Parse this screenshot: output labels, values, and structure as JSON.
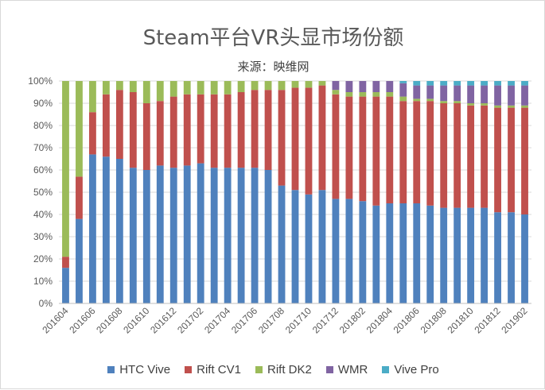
{
  "chart_data": {
    "type": "bar",
    "stacked": "percent",
    "title": "Steam平台VR头显市场份额",
    "subtitle": "来源：映维网",
    "xlabel": "",
    "ylabel": "",
    "ylim": [
      0,
      1
    ],
    "y_ticks": [
      "0%",
      "10%",
      "20%",
      "30%",
      "40%",
      "50%",
      "60%",
      "70%",
      "80%",
      "90%",
      "100%"
    ],
    "legend_position": "bottom",
    "grid": "horizontal",
    "categories": [
      "201604",
      "201605",
      "201606",
      "201607",
      "201608",
      "201609",
      "201610",
      "201611",
      "201612",
      "201701",
      "201702",
      "201703",
      "201704",
      "201705",
      "201706",
      "201707",
      "201708",
      "201709",
      "201710",
      "201711",
      "201712",
      "201801",
      "201802",
      "201803",
      "201804",
      "201805",
      "201806",
      "201807",
      "201808",
      "201809",
      "201810",
      "201811",
      "201812",
      "201901",
      "201902"
    ],
    "x_tick_labels": [
      "201604",
      "201606",
      "201608",
      "201610",
      "201612",
      "201702",
      "201704",
      "201706",
      "201708",
      "201710",
      "201712",
      "201802",
      "201804",
      "201806",
      "201808",
      "201810",
      "201812",
      "201902"
    ],
    "series": [
      {
        "name": "HTC Vive",
        "color": "#4f81bd",
        "values": [
          0.16,
          0.38,
          0.67,
          0.66,
          0.65,
          0.61,
          0.6,
          0.62,
          0.61,
          0.62,
          0.63,
          0.61,
          0.61,
          0.61,
          0.61,
          0.6,
          0.53,
          0.51,
          0.49,
          0.51,
          0.47,
          0.47,
          0.46,
          0.44,
          0.45,
          0.45,
          0.45,
          0.44,
          0.43,
          0.43,
          0.43,
          0.43,
          0.41,
          0.41,
          0.4
        ]
      },
      {
        "name": "Rift CV1",
        "color": "#c0504d",
        "values": [
          0.05,
          0.19,
          0.19,
          0.28,
          0.31,
          0.34,
          0.3,
          0.29,
          0.32,
          0.32,
          0.31,
          0.33,
          0.33,
          0.34,
          0.35,
          0.36,
          0.43,
          0.46,
          0.48,
          0.47,
          0.47,
          0.46,
          0.47,
          0.49,
          0.48,
          0.46,
          0.46,
          0.47,
          0.47,
          0.47,
          0.46,
          0.46,
          0.47,
          0.47,
          0.48
        ]
      },
      {
        "name": "Rift DK2",
        "color": "#9bbb59",
        "values": [
          0.79,
          0.43,
          0.14,
          0.06,
          0.04,
          0.05,
          0.1,
          0.09,
          0.07,
          0.06,
          0.06,
          0.06,
          0.06,
          0.05,
          0.04,
          0.04,
          0.04,
          0.03,
          0.03,
          0.02,
          0.02,
          0.02,
          0.02,
          0.02,
          0.02,
          0.02,
          0.01,
          0.01,
          0.01,
          0.01,
          0.01,
          0.01,
          0.01,
          0.01,
          0.01
        ]
      },
      {
        "name": "WMR",
        "color": "#8064a2",
        "values": [
          0,
          0,
          0,
          0,
          0,
          0,
          0,
          0,
          0,
          0,
          0,
          0,
          0,
          0,
          0,
          0,
          0,
          0,
          0,
          0,
          0.04,
          0.05,
          0.05,
          0.05,
          0.05,
          0.06,
          0.06,
          0.06,
          0.07,
          0.07,
          0.08,
          0.08,
          0.09,
          0.09,
          0.09
        ]
      },
      {
        "name": "Vive Pro",
        "color": "#4bacc6",
        "values": [
          0,
          0,
          0,
          0,
          0,
          0,
          0,
          0,
          0,
          0,
          0,
          0,
          0,
          0,
          0,
          0,
          0,
          0,
          0,
          0,
          0,
          0,
          0,
          0,
          0,
          0.01,
          0.02,
          0.02,
          0.02,
          0.02,
          0.02,
          0.02,
          0.02,
          0.02,
          0.02
        ]
      }
    ]
  }
}
